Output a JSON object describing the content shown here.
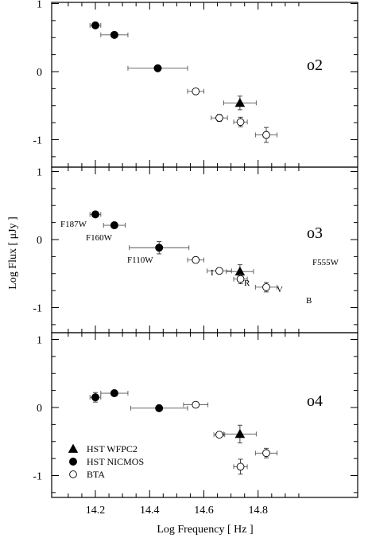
{
  "chart_data": {
    "type": "scatter",
    "xlabel": "Log Frequency  [ Hz ]",
    "ylabel": "Log Flux  [ μJy ]",
    "xlim": [
      14.07,
      14.97
    ],
    "x_ticks": [
      "14.2",
      "14.4",
      "14.6",
      "14.8"
    ],
    "x_tick_values": [
      14.2,
      14.4,
      14.6,
      14.8
    ],
    "y_ticks": [
      "1",
      "0",
      "-1"
    ],
    "y_tick_values": [
      1,
      0,
      -1
    ],
    "grid": false,
    "legend": {
      "placement": "bottom-left of lower panel",
      "entries": [
        {
          "label": "HST  WFPC2",
          "marker": "filled-triangle"
        },
        {
          "label": "HST  NICMOS",
          "marker": "filled-circle"
        },
        {
          "label": "BTA",
          "marker": "open-circle"
        }
      ]
    },
    "panels": [
      {
        "label": "o2",
        "ylim": [
          -1.4,
          1.05
        ],
        "series": [
          {
            "marker": "filled-circle",
            "points": [
              {
                "x": 14.2,
                "y": 0.68,
                "xerr": 0.02,
                "yerr": 0.03
              },
              {
                "x": 14.27,
                "y": 0.54,
                "xerr": 0.05,
                "yerr": 0.03
              },
              {
                "x": 14.43,
                "y": 0.05,
                "xerr": 0.11,
                "yerr": 0.03
              }
            ]
          },
          {
            "marker": "filled-triangle",
            "points": [
              {
                "x": 14.733,
                "y": -0.46,
                "xerr": 0.06,
                "yerr": 0.1
              }
            ]
          },
          {
            "marker": "open-circle",
            "points": [
              {
                "x": 14.57,
                "y": -0.29,
                "xerr": 0.03,
                "yerr": 0.04
              },
              {
                "x": 14.657,
                "y": -0.68,
                "xerr": 0.03,
                "yerr": 0.05
              },
              {
                "x": 14.735,
                "y": -0.74,
                "xerr": 0.025,
                "yerr": 0.07
              },
              {
                "x": 14.83,
                "y": -0.93,
                "xerr": 0.04,
                "yerr": 0.11
              }
            ]
          }
        ]
      },
      {
        "label": "o3",
        "ylim": [
          -1.4,
          1.05
        ],
        "series": [
          {
            "marker": "filled-circle",
            "points": [
              {
                "x": 14.2,
                "y": 0.37,
                "xerr": 0.02,
                "yerr": 0.03
              },
              {
                "x": 14.27,
                "y": 0.21,
                "xerr": 0.04,
                "yerr": 0.03
              },
              {
                "x": 14.435,
                "y": -0.12,
                "xerr": 0.11,
                "yerr": 0.09
              }
            ]
          },
          {
            "marker": "filled-triangle",
            "points": [
              {
                "x": 14.733,
                "y": -0.47,
                "xerr": 0.05,
                "yerr": 0.1
              }
            ]
          },
          {
            "marker": "open-circle",
            "points": [
              {
                "x": 14.57,
                "y": -0.3,
                "xerr": 0.03,
                "yerr": 0.04
              },
              {
                "x": 14.657,
                "y": -0.46,
                "xerr": 0.045,
                "yerr": 0.04
              },
              {
                "x": 14.735,
                "y": -0.58,
                "xerr": 0.025,
                "yerr": 0.07
              },
              {
                "x": 14.83,
                "y": -0.7,
                "xerr": 0.04,
                "yerr": 0.07
              }
            ]
          }
        ],
        "annotations": [
          "F187W",
          "F160W",
          "F110W",
          "I",
          "R",
          "V",
          "F555W",
          "B"
        ]
      },
      {
        "label": "o4",
        "ylim": [
          -1.4,
          1.05
        ],
        "series": [
          {
            "marker": "filled-circle",
            "points": [
              {
                "x": 14.2,
                "y": 0.15,
                "xerr": 0.02,
                "yerr": 0.07
              },
              {
                "x": 14.27,
                "y": 0.21,
                "xerr": 0.05,
                "yerr": 0.03
              },
              {
                "x": 14.435,
                "y": -0.01,
                "xerr": 0.105,
                "yerr": 0.03
              }
            ]
          },
          {
            "marker": "filled-triangle",
            "points": [
              {
                "x": 14.733,
                "y": -0.39,
                "xerr": 0.06,
                "yerr": 0.13
              }
            ]
          },
          {
            "marker": "open-circle",
            "points": [
              {
                "x": 14.57,
                "y": 0.04,
                "xerr": 0.045,
                "yerr": 0.04
              },
              {
                "x": 14.657,
                "y": -0.4,
                "xerr": 0.02,
                "yerr": 0.03
              },
              {
                "x": 14.735,
                "y": -0.87,
                "xerr": 0.025,
                "yerr": 0.11
              },
              {
                "x": 14.83,
                "y": -0.67,
                "xerr": 0.04,
                "yerr": 0.07
              }
            ]
          }
        ]
      }
    ]
  }
}
